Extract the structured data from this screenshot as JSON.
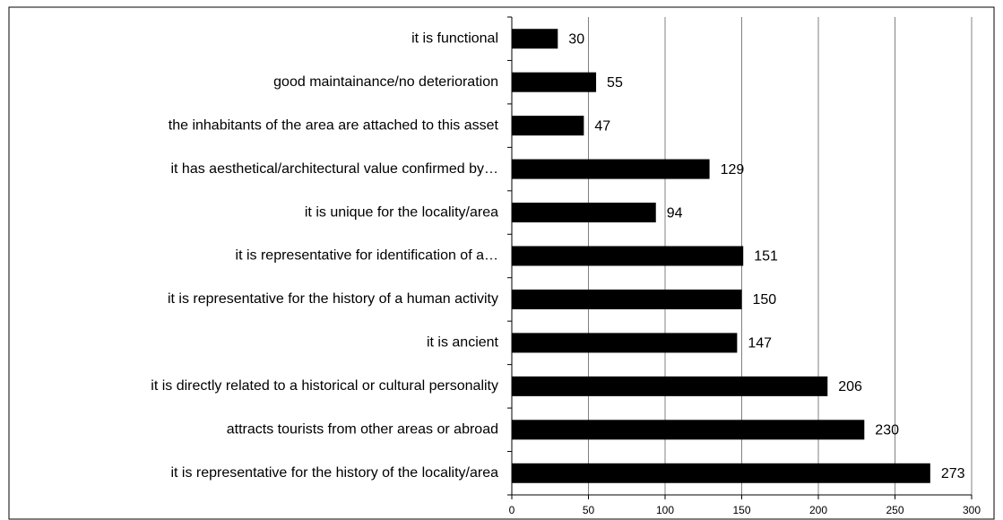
{
  "chart_data": {
    "type": "bar",
    "orientation": "horizontal",
    "categories": [
      "it is functional",
      "good maintainance/no deterioration",
      "the inhabitants of the area are attached to this asset",
      "it has aesthetical/architectural value confirmed by…",
      "it is unique for the locality/area",
      "it is representative for identification of a…",
      "it is representative for the history of a human activity",
      "it is ancient",
      "it is directly related to a historical or cultural personality",
      "attracts tourists from other areas or abroad",
      "it is representative for the history of the locality/area"
    ],
    "values": [
      30,
      55,
      47,
      129,
      94,
      151,
      150,
      147,
      206,
      230,
      273
    ],
    "color": "#000000",
    "xlim": [
      0,
      300
    ],
    "xticks": [
      0,
      50,
      100,
      150,
      200,
      250,
      300
    ],
    "grid": true
  }
}
